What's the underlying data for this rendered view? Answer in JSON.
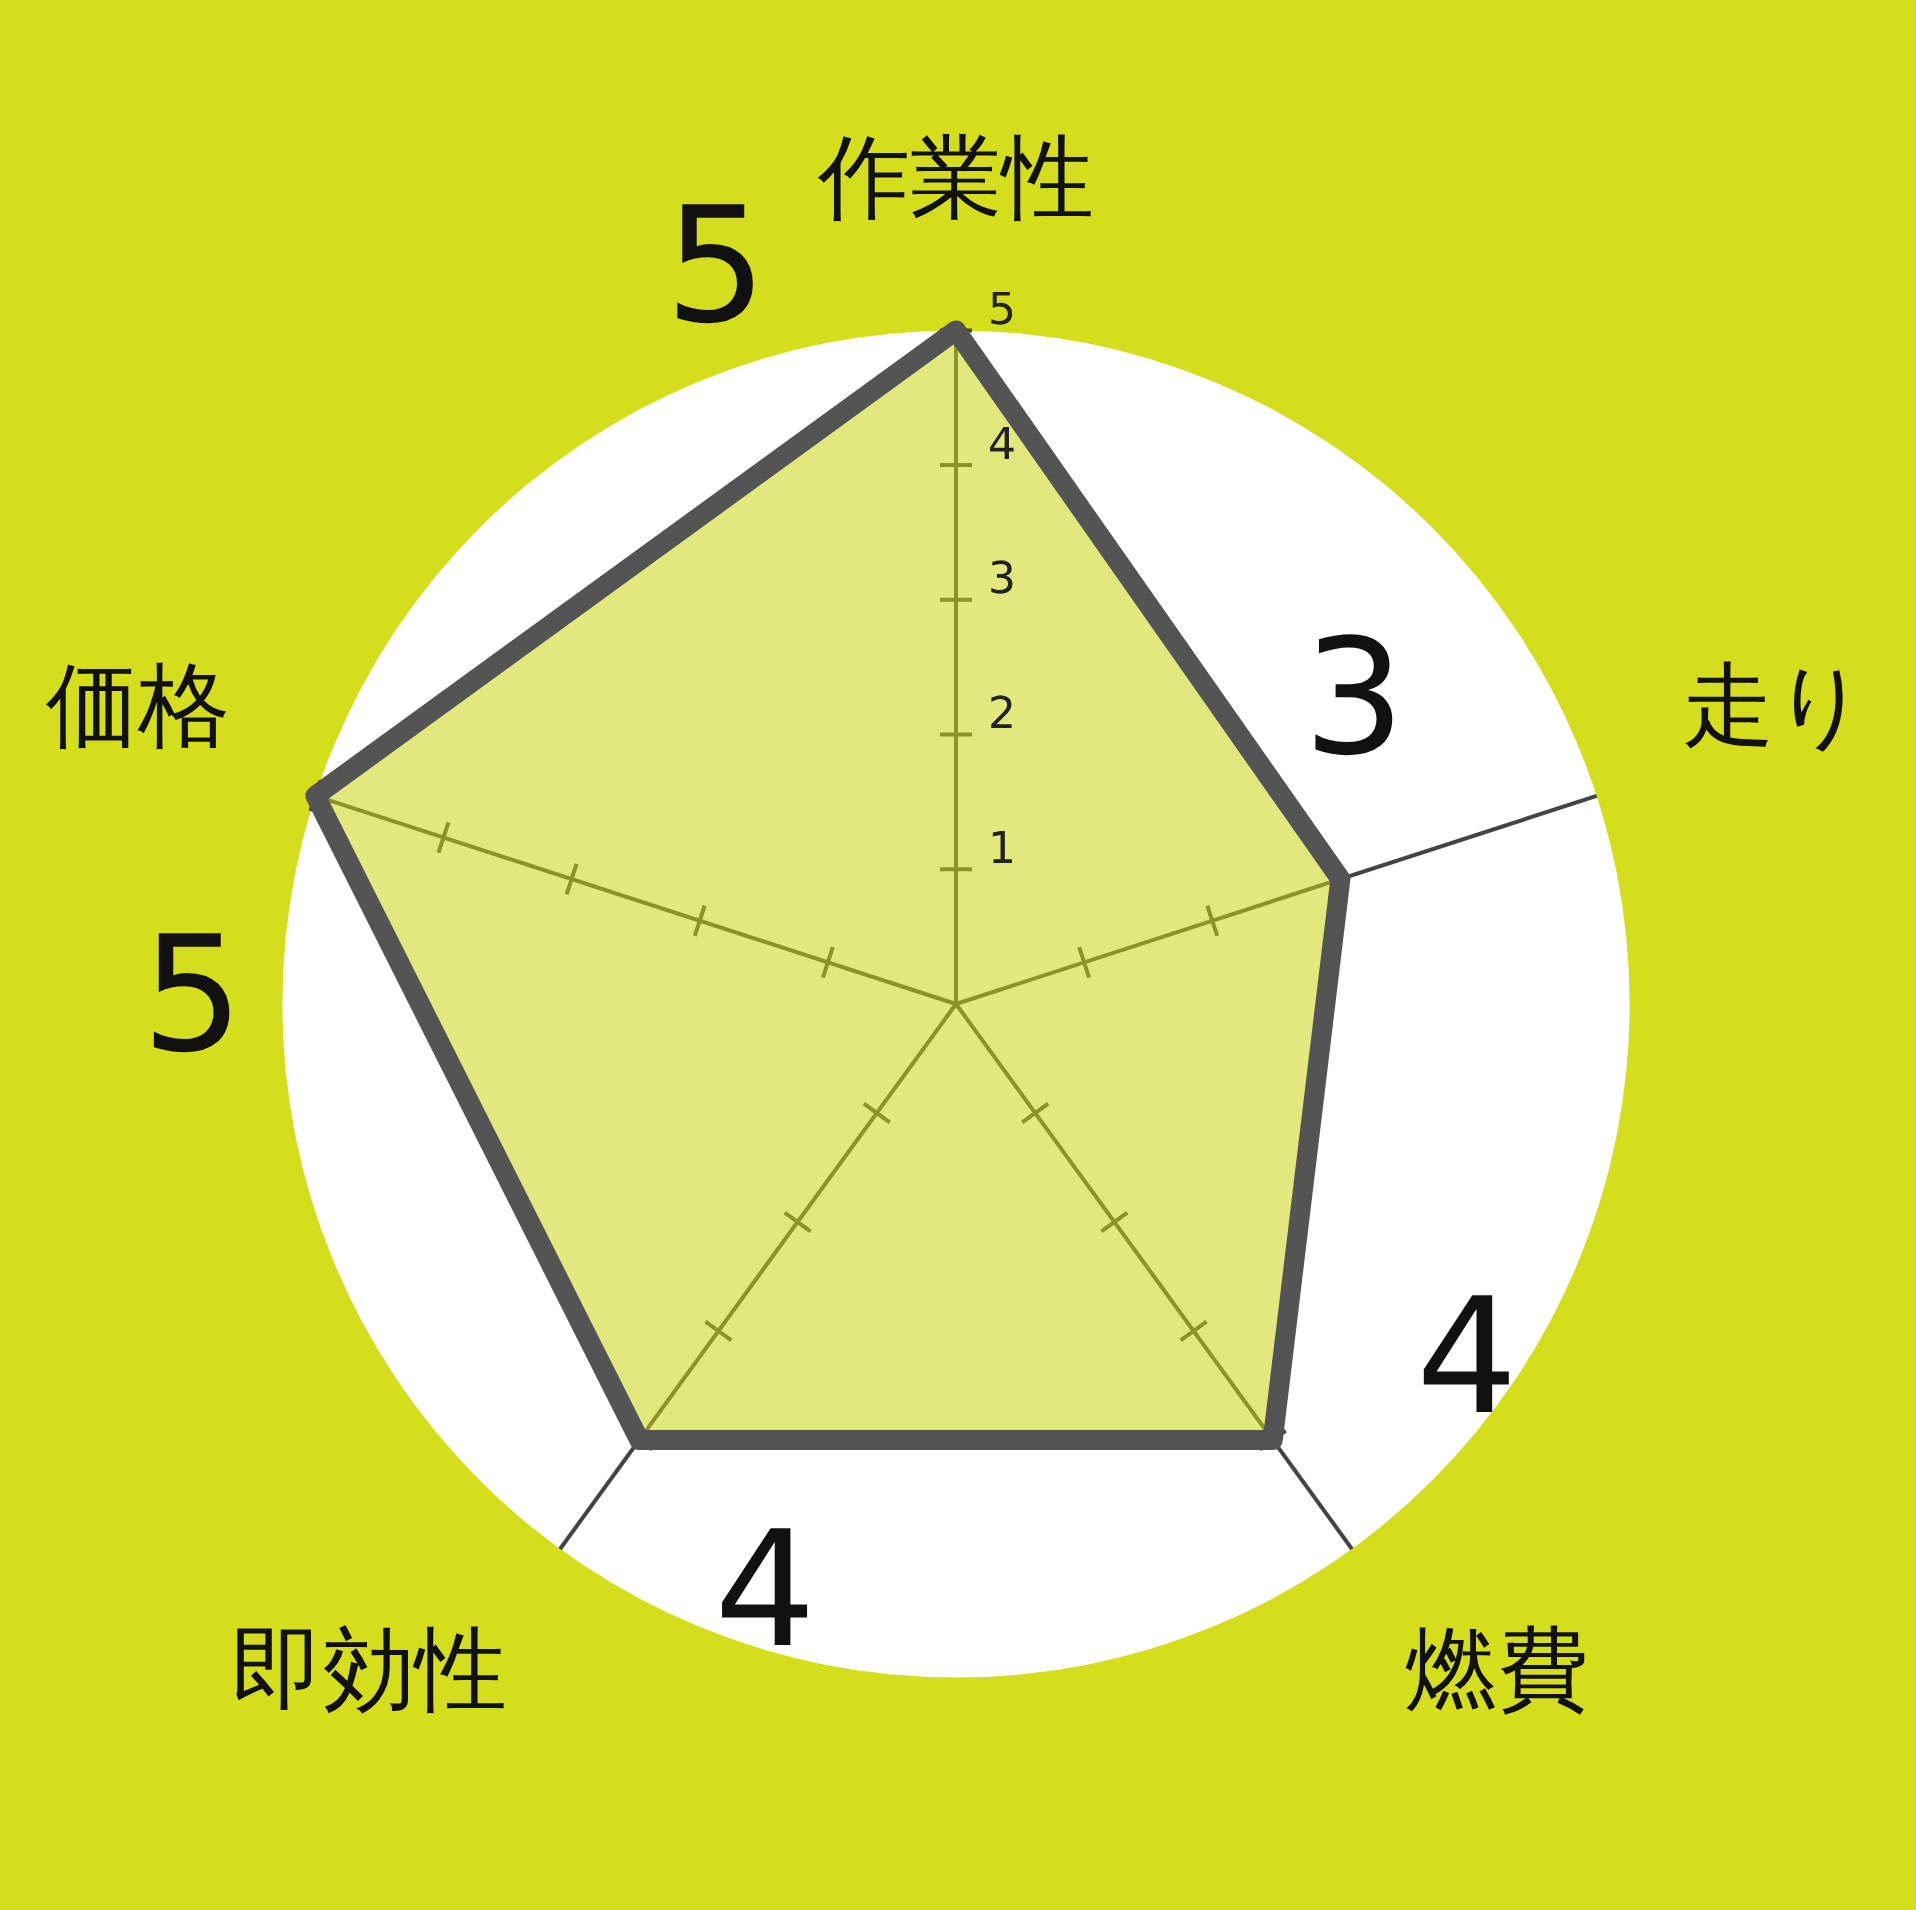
{
  "chart_data": {
    "type": "radar",
    "categories": [
      "作業性",
      "走り",
      "燃費",
      "即効性",
      "価格"
    ],
    "series": [
      {
        "color": "#545454",
        "values": [
          5,
          3,
          4,
          4,
          5
        ]
      }
    ],
    "ylim": [
      0,
      5
    ],
    "yticks": [
      1,
      2,
      3,
      4,
      5
    ],
    "data_labels": true,
    "legend": false,
    "grid": false,
    "marker": "none"
  }
}
